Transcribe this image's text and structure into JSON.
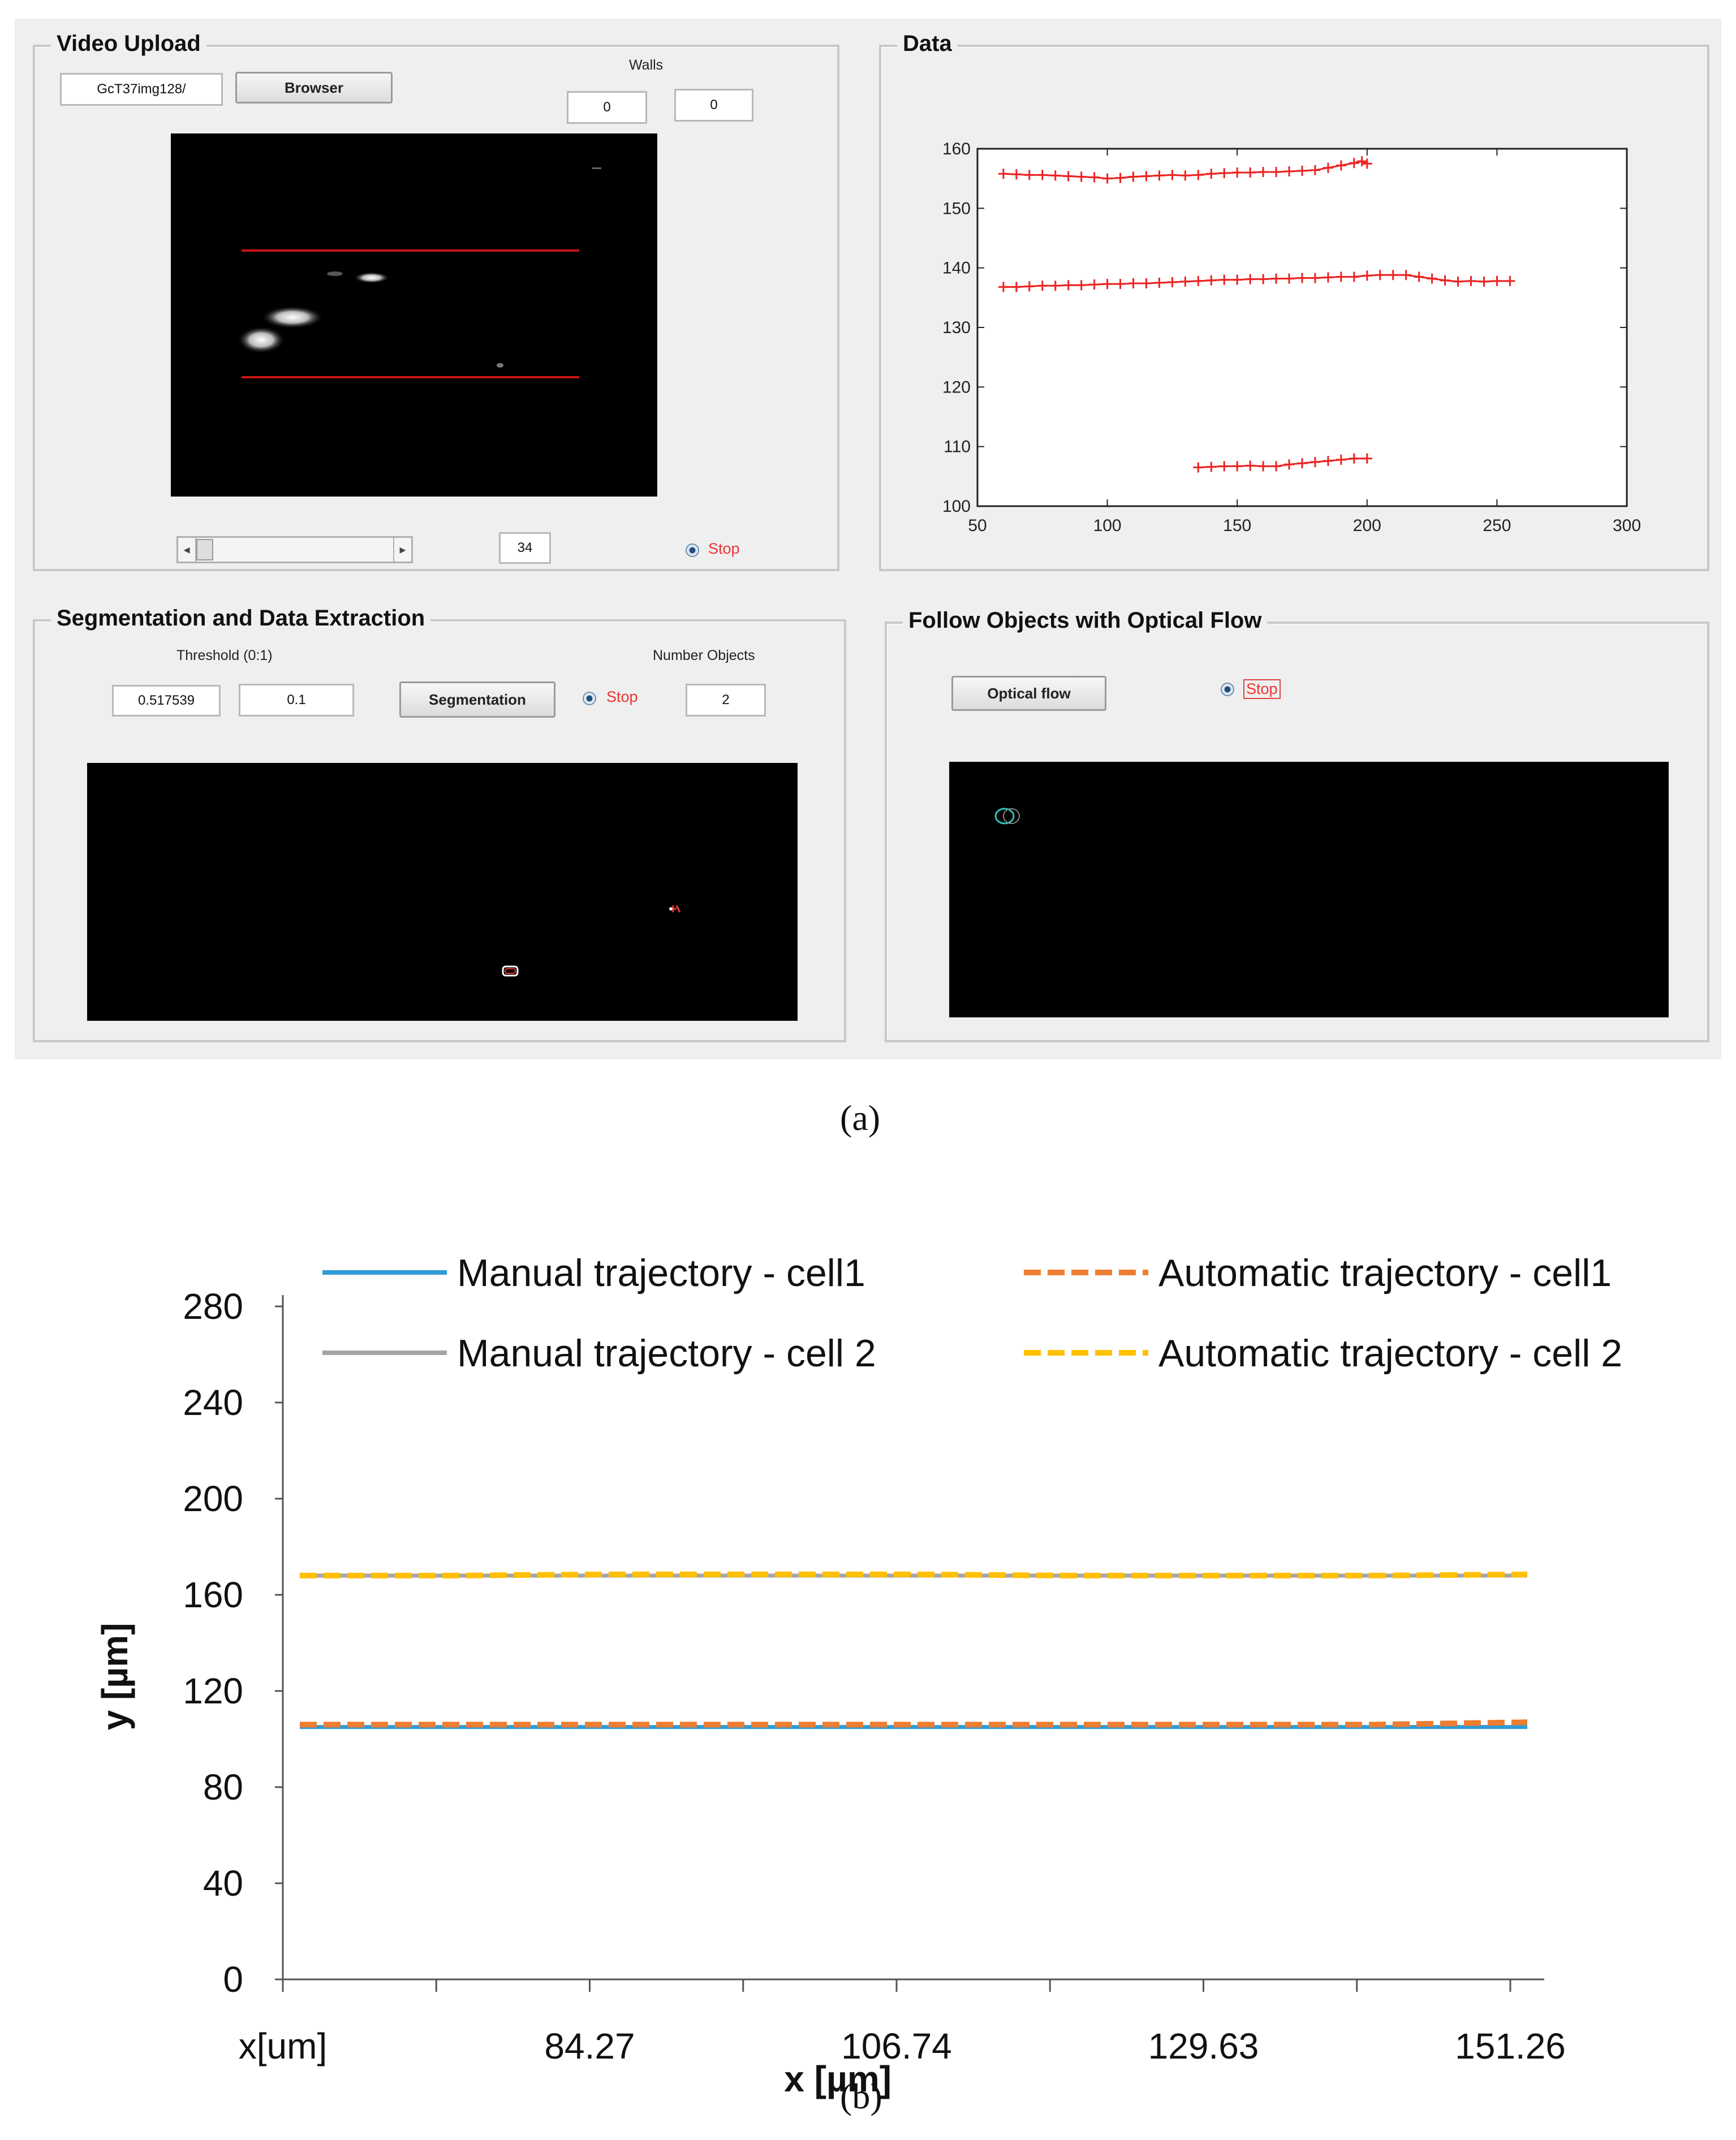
{
  "figure_a": {
    "caption": "(a)",
    "video_upload": {
      "title": "Video Upload",
      "file_field": "GcT37img128/",
      "browse_button": "Browser",
      "walls_label": "Walls",
      "wall1": "0",
      "wall2": "0",
      "frame_field": "34",
      "radio_label": "Stop"
    },
    "data_panel": {
      "title": "Data",
      "chart_data": {
        "type": "scatter",
        "title": "",
        "xlabel": "",
        "ylabel": "",
        "xlim": [
          50,
          300
        ],
        "ylim": [
          100,
          160
        ],
        "x_ticks": [
          "50",
          "100",
          "150",
          "200",
          "250",
          "300"
        ],
        "y_ticks": [
          "100",
          "110",
          "120",
          "130",
          "140",
          "150",
          "160"
        ],
        "marker": "+",
        "marker_color": "#ee2222",
        "series": [
          {
            "x": [
              60,
              65,
              70,
              75,
              80,
              85,
              90,
              95,
              100,
              105,
              110,
              115,
              120,
              125,
              130,
              135,
              140,
              145,
              150,
              155,
              160,
              165,
              170,
              175,
              180,
              185,
              190,
              195,
              198,
              200
            ],
            "y": [
              155.8,
              155.7,
              155.6,
              155.6,
              155.5,
              155.4,
              155.3,
              155.2,
              155.0,
              155.1,
              155.3,
              155.4,
              155.5,
              155.6,
              155.5,
              155.6,
              155.8,
              155.9,
              156.0,
              156.0,
              156.1,
              156.1,
              156.2,
              156.3,
              156.4,
              156.8,
              157.2,
              157.6,
              157.9,
              157.5
            ]
          },
          {
            "x": [
              60,
              65,
              70,
              75,
              80,
              85,
              90,
              95,
              100,
              105,
              110,
              115,
              120,
              125,
              130,
              135,
              140,
              145,
              150,
              155,
              160,
              165,
              170,
              175,
              180,
              185,
              190,
              195,
              200,
              205,
              210,
              215,
              220,
              225,
              230,
              235,
              240,
              245,
              250,
              255
            ],
            "y": [
              136.8,
              136.8,
              136.9,
              137.0,
              137.0,
              137.1,
              137.1,
              137.2,
              137.3,
              137.3,
              137.4,
              137.4,
              137.5,
              137.6,
              137.7,
              137.8,
              137.9,
              138.0,
              138.0,
              138.1,
              138.1,
              138.2,
              138.2,
              138.3,
              138.3,
              138.4,
              138.5,
              138.5,
              138.7,
              138.8,
              138.8,
              138.8,
              138.5,
              138.2,
              137.9,
              137.7,
              137.8,
              137.7,
              137.8,
              137.8
            ]
          },
          {
            "x": [
              135,
              140,
              145,
              150,
              155,
              160,
              165,
              170,
              175,
              180,
              185,
              190,
              195,
              200
            ],
            "y": [
              106.5,
              106.6,
              106.7,
              106.7,
              106.8,
              106.7,
              106.7,
              107.0,
              107.2,
              107.4,
              107.6,
              107.8,
              108.0,
              108.0
            ]
          }
        ]
      }
    },
    "segmentation": {
      "title": "Segmentation and  Data Extraction",
      "threshold_label": "Threshold (0:1)",
      "threshold_value": "0.517539",
      "threshold_step": "0.1",
      "segmentation_button": "Segmentation",
      "radio_label": "Stop",
      "number_objects_label": "Number Objects",
      "number_objects": "2"
    },
    "optical_flow": {
      "title": "Follow Objects with Optical Flow",
      "button": "Optical flow",
      "radio_label": "Stop"
    }
  },
  "figure_b": {
    "caption": "(b)",
    "chart_data": {
      "type": "line",
      "title": "",
      "xlabel": "x [µm]",
      "ylabel": "y [µm]",
      "ylim": [
        0,
        280
      ],
      "y_ticks": [
        0,
        40,
        80,
        120,
        160,
        200,
        240,
        280
      ],
      "x_tick_labels": [
        "x[um]",
        "84.27",
        "106.74",
        "129.63",
        "151.26"
      ],
      "x": [
        0,
        1,
        2,
        3,
        4,
        5,
        6,
        7,
        8
      ],
      "series": [
        {
          "name": "Manual trajectory - cell1",
          "color": "#2e9bd6",
          "dash": "solid",
          "values": [
            105,
            105,
            105,
            105,
            105,
            105,
            105,
            105,
            105
          ]
        },
        {
          "name": "Automatic trajectory - cell1",
          "color": "#ed7d31",
          "dash": "dashed",
          "values": [
            106,
            106,
            106,
            106,
            106,
            106,
            106,
            106,
            107
          ]
        },
        {
          "name": "Manual trajectory - cell 2",
          "color": "#a5a5a5",
          "dash": "solid",
          "values": [
            168,
            168,
            168,
            168,
            168,
            168,
            168,
            168,
            168
          ]
        },
        {
          "name": "Automatic trajectory - cell 2",
          "color": "#ffc000",
          "dash": "dashed",
          "values": [
            168,
            168,
            168.5,
            168.5,
            168.5,
            168,
            168,
            168,
            168.5
          ]
        }
      ]
    }
  }
}
